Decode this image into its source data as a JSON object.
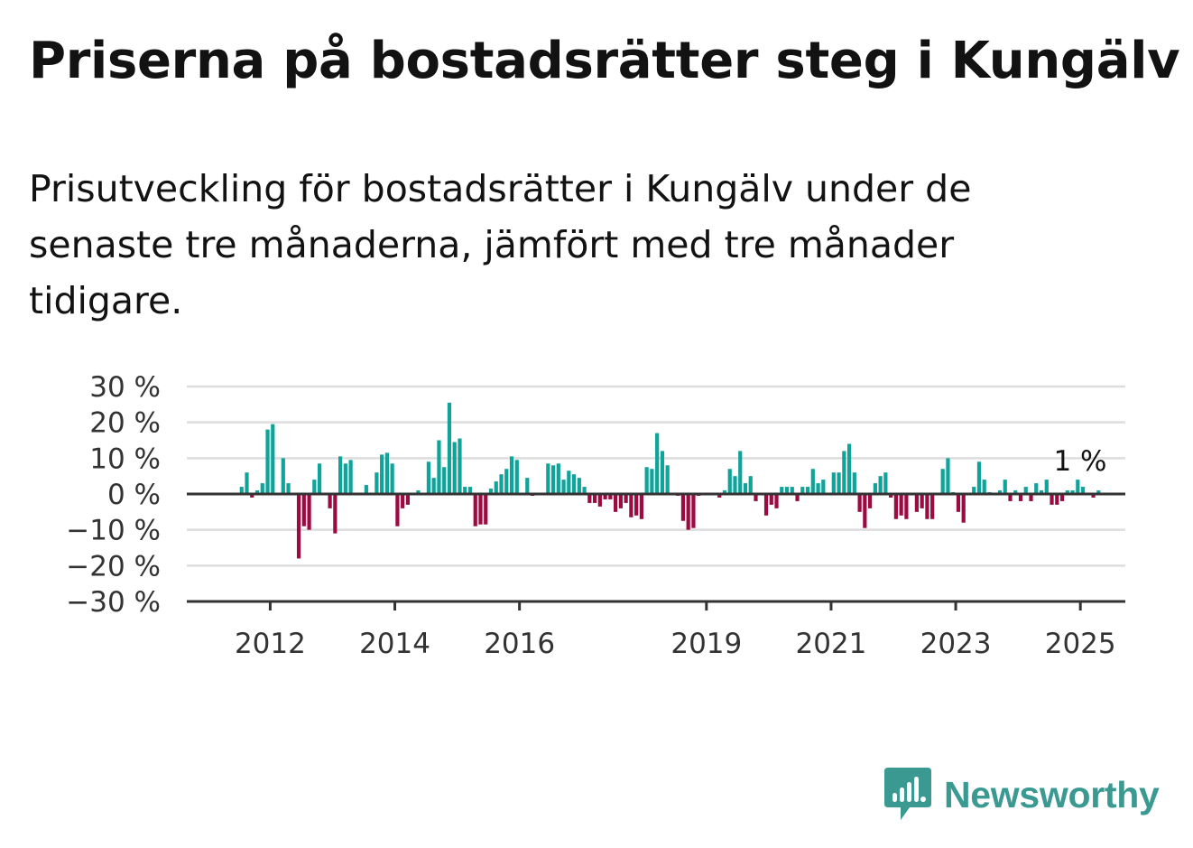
{
  "title": "Priserna på bostadsrätter steg i Kungälv",
  "subtitle": "Prisutveckling för bostadsrätter i Kungälv under de senaste tre månaderna, jämfört med tre månader tidigare.",
  "brand": {
    "name": "Newsworthy",
    "icon": "newsworthy-logo-icon"
  },
  "colors": {
    "positive": "#10a39a",
    "negative": "#9b0a40",
    "grid": "#dddddd",
    "axis": "#333333"
  },
  "chart_data": {
    "type": "bar",
    "title": "Priserna på bostadsrätter steg i Kungälv",
    "xlabel": "",
    "ylabel": "",
    "ylim": [
      -30,
      30
    ],
    "y_ticks": [
      "30 %",
      "20 %",
      "10 %",
      "0 %",
      "−10 %",
      "−20 %",
      "−30 %"
    ],
    "y_tick_values": [
      30,
      20,
      10,
      0,
      -10,
      -20,
      -30
    ],
    "x_ticks": [
      "2012",
      "2014",
      "2016",
      "2019",
      "2021",
      "2023",
      "2025"
    ],
    "start": "2011-06",
    "end": "2025-09",
    "last_value_label": "1 %",
    "grid": true,
    "legend": "none",
    "values": [
      0,
      2,
      6,
      -1,
      1,
      3,
      18,
      19.5,
      0,
      10,
      3,
      0,
      -18,
      -9,
      -10,
      4,
      8.5,
      0,
      -4,
      -11,
      10.5,
      8.5,
      9.5,
      0,
      0,
      2.5,
      0,
      6,
      11,
      11.5,
      8.5,
      -9,
      -4,
      -3,
      0,
      1,
      0,
      9,
      4.5,
      15,
      7.5,
      25.5,
      14.5,
      15.5,
      2,
      2,
      -9,
      -8.5,
      -8.5,
      1.5,
      3.5,
      5.5,
      7,
      10.5,
      9.5,
      0,
      4.5,
      -0.5,
      0,
      0,
      8.5,
      8,
      8.5,
      4,
      6.5,
      5.5,
      4.5,
      2,
      -2.5,
      -2.5,
      -3.5,
      -1.5,
      -1.5,
      -5,
      -4,
      -2.5,
      -6.5,
      -6,
      -7,
      7.5,
      7,
      17,
      12,
      8,
      0,
      -0.5,
      -7.5,
      -10,
      -9.5,
      -0.5,
      0,
      0,
      0,
      -1,
      1,
      7,
      5,
      12,
      3,
      5,
      -2,
      0,
      -6,
      -3,
      -4,
      2,
      2,
      2,
      -2,
      2,
      2,
      7,
      3,
      4,
      0,
      6,
      6,
      12,
      14,
      6,
      -5,
      -9.5,
      -4,
      3,
      5,
      6,
      -1,
      -7,
      -6,
      -7,
      0,
      -5,
      -4,
      -7,
      -7,
      0,
      7,
      10,
      0.5,
      -5,
      -8,
      0,
      2,
      9,
      4,
      0.5,
      0,
      1,
      4,
      -2,
      1,
      -2,
      2,
      -2,
      3,
      1,
      4,
      -3,
      -3,
      -2,
      1,
      1,
      4,
      2,
      0,
      -1,
      1
    ]
  }
}
